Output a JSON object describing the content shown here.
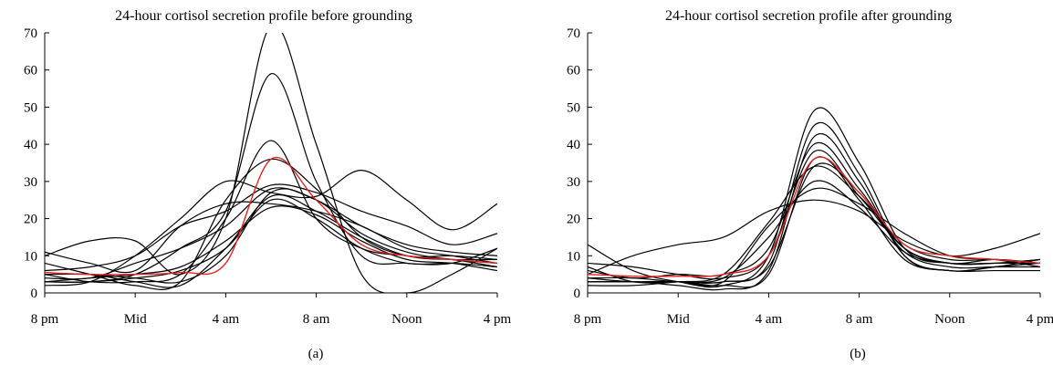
{
  "chart_data": [
    {
      "type": "line",
      "panel_label": "(a)",
      "title": "24-hour cortisol secretion profile before grounding",
      "xlabel": "",
      "ylabel": "",
      "x": [
        0,
        2,
        4,
        6,
        8,
        10,
        12,
        14,
        16,
        18,
        20
      ],
      "x_tick_positions": [
        0,
        4,
        8,
        12,
        16,
        20
      ],
      "x_tick_labels": [
        "8 pm",
        "Mid",
        "4 am",
        "8 am",
        "Noon",
        "4 pm"
      ],
      "xlim": [
        0,
        20
      ],
      "ylim": [
        0,
        70
      ],
      "y_ticks": [
        0,
        10,
        20,
        30,
        40,
        50,
        60,
        70
      ],
      "grid": false,
      "legend": "none",
      "line_color": "#000000",
      "highlight_color": "#e8231f",
      "series": [
        {
          "values": [
            10,
            14,
            14,
            5,
            20,
            72,
            40,
            5,
            0,
            5,
            12
          ]
        },
        {
          "values": [
            3,
            3,
            5,
            12,
            22,
            59,
            30,
            10,
            8,
            8,
            12
          ]
        },
        {
          "values": [
            5,
            3,
            3,
            5,
            20,
            41,
            20,
            12,
            10,
            9,
            7
          ]
        },
        {
          "values": [
            8,
            5,
            2,
            3,
            25,
            36,
            28,
            15,
            10,
            10,
            9
          ]
        },
        {
          "values": [
            2,
            3,
            10,
            20,
            30,
            27,
            26,
            33,
            25,
            17,
            24
          ]
        },
        {
          "values": [
            6,
            7,
            10,
            18,
            22,
            29,
            27,
            22,
            18,
            13,
            16
          ]
        },
        {
          "values": [
            4,
            4,
            8,
            12,
            18,
            28,
            25,
            18,
            13,
            11,
            10
          ]
        },
        {
          "values": [
            5,
            5,
            3,
            2,
            12,
            26,
            22,
            15,
            10,
            9,
            9
          ]
        },
        {
          "values": [
            3,
            3,
            4,
            6,
            12,
            25,
            20,
            12,
            8,
            8,
            7
          ]
        },
        {
          "values": [
            11,
            8,
            6,
            18,
            24,
            24,
            22,
            18,
            12,
            10,
            8
          ]
        },
        {
          "values": [
            3,
            4,
            5,
            7,
            14,
            23,
            21,
            14,
            9,
            8,
            6
          ]
        },
        {
          "values": [
            5,
            5,
            4,
            3,
            10,
            27,
            25,
            16,
            11,
            9,
            8
          ]
        }
      ],
      "mean_series": {
        "values": [
          5.5,
          5,
          5,
          5.5,
          8,
          36,
          25,
          13,
          10,
          9,
          8
        ]
      }
    },
    {
      "type": "line",
      "panel_label": "(b)",
      "title": "24-hour cortisol secretion profile after grounding",
      "xlabel": "",
      "ylabel": "",
      "x": [
        0,
        2,
        4,
        6,
        8,
        10,
        12,
        14,
        16,
        18,
        20
      ],
      "x_tick_positions": [
        0,
        4,
        8,
        12,
        16,
        20
      ],
      "x_tick_labels": [
        "8 pm",
        "Mid",
        "4 am",
        "8 am",
        "Noon",
        "4 pm"
      ],
      "xlim": [
        0,
        20
      ],
      "ylim": [
        0,
        70
      ],
      "y_ticks": [
        0,
        10,
        20,
        30,
        40,
        50,
        60,
        70
      ],
      "grid": false,
      "legend": "none",
      "line_color": "#000000",
      "highlight_color": "#e8231f",
      "series": [
        {
          "values": [
            13,
            6,
            3,
            2,
            10,
            49,
            35,
            12,
            8,
            9,
            8
          ]
        },
        {
          "values": [
            4,
            3,
            3,
            3,
            8,
            45,
            32,
            10,
            6,
            7,
            8
          ]
        },
        {
          "values": [
            3,
            3,
            2,
            1,
            6,
            42,
            30,
            10,
            6,
            7,
            9
          ]
        },
        {
          "values": [
            6,
            4,
            5,
            5,
            12,
            40,
            28,
            12,
            8,
            8,
            8
          ]
        },
        {
          "values": [
            8,
            7,
            5,
            4,
            10,
            38,
            26,
            12,
            8,
            8,
            9
          ]
        },
        {
          "values": [
            5,
            10,
            13,
            15,
            22,
            25,
            22,
            14,
            10,
            12,
            16
          ]
        },
        {
          "values": [
            3,
            3,
            3,
            5,
            19,
            34,
            26,
            13,
            9,
            9,
            8
          ]
        },
        {
          "values": [
            4,
            4,
            3,
            3,
            7,
            34,
            27,
            11,
            7,
            7,
            7
          ]
        },
        {
          "values": [
            2,
            2,
            3,
            4,
            15,
            30,
            23,
            11,
            8,
            8,
            8
          ]
        },
        {
          "values": [
            7,
            3,
            3,
            3,
            18,
            28,
            24,
            16,
            10,
            9,
            7
          ]
        },
        {
          "values": [
            3,
            3,
            3,
            2,
            5,
            36,
            25,
            9,
            6,
            6,
            6
          ]
        }
      ],
      "mean_series": {
        "values": [
          5,
          4.5,
          4.5,
          5,
          10,
          36,
          27,
          13,
          10,
          9,
          8
        ]
      }
    }
  ]
}
